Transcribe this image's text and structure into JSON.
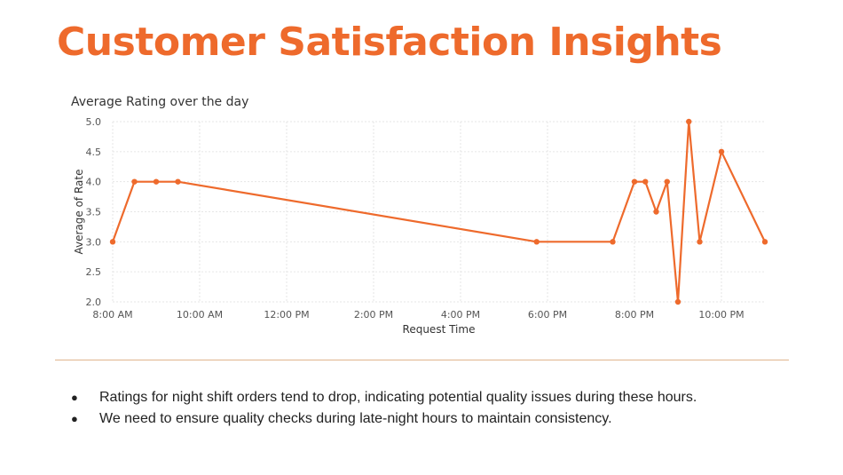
{
  "slide": {
    "title": "Customer Satisfaction Insights",
    "bullets": [
      "Ratings for night shift orders tend to drop, indicating potential quality issues during these hours.",
      "We need to ensure quality checks during late-night hours to maintain consistency."
    ]
  },
  "colors": {
    "accent": "#ee6a2c",
    "line": "#ee6a2c",
    "divider": "#e0b48e",
    "grid": "#e6e6e6"
  },
  "chart_data": {
    "type": "line",
    "title": "Average Rating over the day",
    "xlabel": "Request Time",
    "ylabel": "Average of Rate",
    "x_ticks": [
      "8:00 AM",
      "10:00 AM",
      "12:00 PM",
      "2:00 PM",
      "4:00 PM",
      "6:00 PM",
      "8:00 PM",
      "10:00 PM"
    ],
    "y_ticks": [
      "2.0",
      "2.5",
      "3.0",
      "3.5",
      "4.0",
      "4.5",
      "5.0"
    ],
    "ylim": [
      2.0,
      5.0
    ],
    "xlim": [
      "8:00 AM",
      "11:00 PM"
    ],
    "grid": true,
    "series": [
      {
        "x": [
          "8:00 AM",
          "8:30 AM",
          "9:00 AM",
          "9:30 AM",
          "5:45 PM",
          "7:30 PM",
          "8:00 PM",
          "8:15 PM",
          "8:30 PM",
          "8:45 PM",
          "9:00 PM",
          "9:15 PM",
          "9:30 PM",
          "10:00 PM",
          "11:00 PM"
        ],
        "y": [
          3.0,
          4.0,
          4.0,
          4.0,
          3.0,
          3.0,
          4.0,
          4.0,
          3.5,
          4.0,
          2.0,
          5.0,
          3.0,
          4.5,
          3.0
        ]
      }
    ]
  }
}
